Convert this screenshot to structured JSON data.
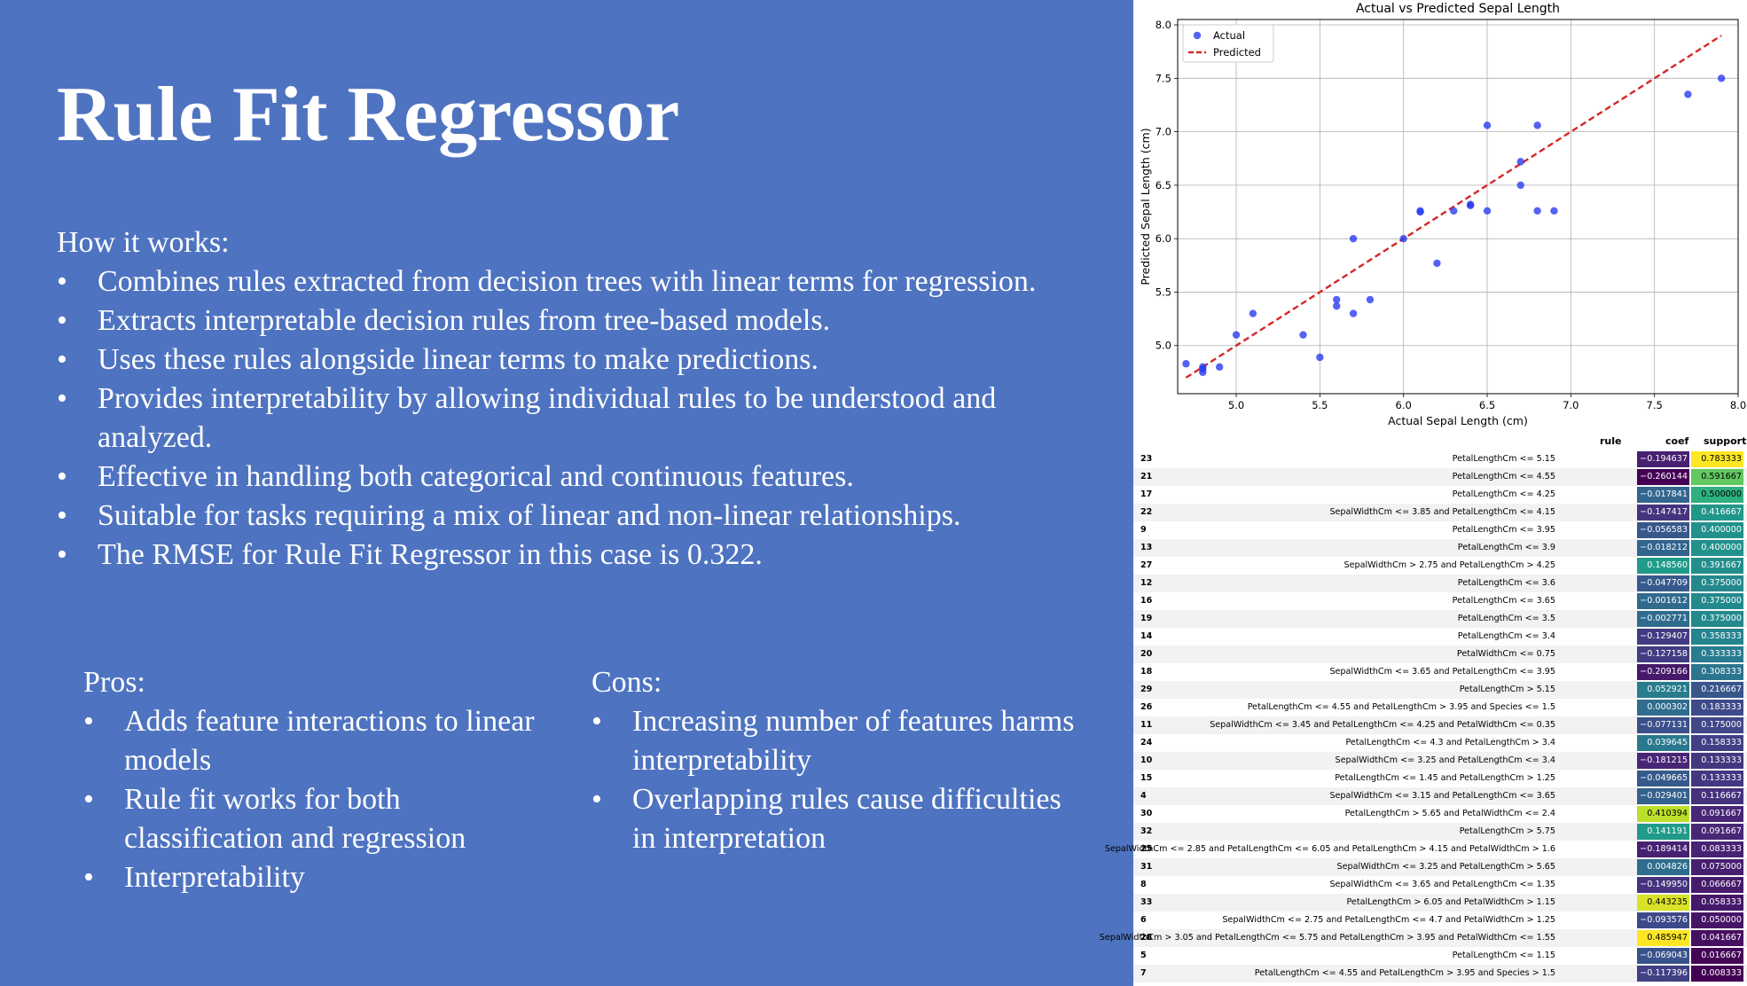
{
  "slide": {
    "title": "Rule Fit Regressor",
    "how_label": "How it works:",
    "how_items": [
      "Combines rules extracted from decision trees with linear terms for regression.",
      "Extracts interpretable decision rules from tree-based models.",
      "Uses these rules alongside linear terms to make predictions.",
      "Provides interpretability by allowing individual rules to be understood and analyzed.",
      "Effective in handling both categorical and continuous features.",
      "Suitable for tasks requiring a mix of linear and non-linear relationships.",
      "The RMSE for Rule Fit Regressor in this case is 0.322."
    ],
    "pros_label": "Pros:",
    "pros_items": [
      "Adds feature interactions to linear models",
      "Rule fit works for both classification and regression",
      "Interpretability"
    ],
    "cons_label": "Cons:",
    "cons_items": [
      "Increasing number of features harms interpretability",
      "Overlapping rules cause difficulties in interpretation"
    ],
    "bullet_char": "•"
  },
  "chart_data": {
    "type": "scatter",
    "title": "Actual vs Predicted Sepal Length",
    "xlabel": "Actual Sepal Length (cm)",
    "ylabel": "Predicted Sepal Length (cm)",
    "xlim": [
      4.65,
      8.0
    ],
    "ylim": [
      4.55,
      8.05
    ],
    "xticks": [
      5.0,
      5.5,
      6.0,
      6.5,
      7.0,
      7.5,
      8.0
    ],
    "yticks": [
      5.0,
      5.5,
      6.0,
      6.5,
      7.0,
      7.5,
      8.0
    ],
    "grid": true,
    "legend_position": "top-left",
    "series": [
      {
        "name": "Actual",
        "color": "#2a3bf0",
        "points": [
          [
            4.7,
            4.83
          ],
          [
            4.8,
            4.78
          ],
          [
            4.8,
            4.75
          ],
          [
            4.8,
            4.8
          ],
          [
            4.9,
            4.8
          ],
          [
            5.0,
            5.1
          ],
          [
            5.1,
            5.3
          ],
          [
            5.4,
            5.1
          ],
          [
            5.5,
            4.89
          ],
          [
            5.6,
            5.43
          ],
          [
            5.6,
            5.37
          ],
          [
            5.7,
            5.3
          ],
          [
            5.7,
            6.0
          ],
          [
            5.8,
            5.43
          ],
          [
            6.0,
            6.0
          ],
          [
            6.1,
            6.26
          ],
          [
            6.1,
            6.25
          ],
          [
            6.2,
            5.77
          ],
          [
            6.3,
            6.26
          ],
          [
            6.4,
            6.31
          ],
          [
            6.4,
            6.32
          ],
          [
            6.5,
            6.26
          ],
          [
            6.5,
            7.06
          ],
          [
            6.7,
            6.72
          ],
          [
            6.7,
            6.5
          ],
          [
            6.8,
            6.26
          ],
          [
            6.8,
            7.06
          ],
          [
            6.9,
            6.26
          ],
          [
            7.7,
            7.35
          ],
          [
            7.9,
            7.5
          ]
        ]
      },
      {
        "name": "Predicted",
        "color": "#d62728",
        "line": [
          [
            4.7,
            4.7
          ],
          [
            7.9,
            7.9
          ]
        ]
      }
    ]
  },
  "table": {
    "headers": {
      "rule": "rule",
      "coef": "coef",
      "support": "support"
    },
    "rows": [
      {
        "idx": "23",
        "rule": "PetalLengthCm <= 5.15",
        "coef": -0.194637,
        "coef_text": "−0.194637",
        "support": 0.783333,
        "support_text": "0.783333"
      },
      {
        "idx": "21",
        "rule": "PetalLengthCm <= 4.55",
        "coef": -0.260144,
        "coef_text": "−0.260144",
        "support": 0.591667,
        "support_text": "0.591667"
      },
      {
        "idx": "17",
        "rule": "PetalLengthCm <= 4.25",
        "coef": -0.017841,
        "coef_text": "−0.017841",
        "support": 0.5,
        "support_text": "0.500000"
      },
      {
        "idx": "22",
        "rule": "SepalWidthCm <= 3.85 and PetalLengthCm <= 4.15",
        "coef": -0.147417,
        "coef_text": "−0.147417",
        "support": 0.416667,
        "support_text": "0.416667"
      },
      {
        "idx": "9",
        "rule": "PetalLengthCm <= 3.95",
        "coef": -0.056583,
        "coef_text": "−0.056583",
        "support": 0.4,
        "support_text": "0.400000"
      },
      {
        "idx": "13",
        "rule": "PetalLengthCm <= 3.9",
        "coef": -0.018212,
        "coef_text": "−0.018212",
        "support": 0.4,
        "support_text": "0.400000"
      },
      {
        "idx": "27",
        "rule": "SepalWidthCm > 2.75 and PetalLengthCm > 4.25",
        "coef": 0.14856,
        "coef_text": "0.148560",
        "support": 0.391667,
        "support_text": "0.391667"
      },
      {
        "idx": "12",
        "rule": "PetalLengthCm <= 3.6",
        "coef": -0.047709,
        "coef_text": "−0.047709",
        "support": 0.375,
        "support_text": "0.375000"
      },
      {
        "idx": "16",
        "rule": "PetalLengthCm <= 3.65",
        "coef": -0.001612,
        "coef_text": "−0.001612",
        "support": 0.375,
        "support_text": "0.375000"
      },
      {
        "idx": "19",
        "rule": "PetalLengthCm <= 3.5",
        "coef": -0.002771,
        "coef_text": "−0.002771",
        "support": 0.375,
        "support_text": "0.375000"
      },
      {
        "idx": "14",
        "rule": "PetalLengthCm <= 3.4",
        "coef": -0.129407,
        "coef_text": "−0.129407",
        "support": 0.358333,
        "support_text": "0.358333"
      },
      {
        "idx": "20",
        "rule": "PetalWidthCm <= 0.75",
        "coef": -0.127158,
        "coef_text": "−0.127158",
        "support": 0.333333,
        "support_text": "0.333333"
      },
      {
        "idx": "18",
        "rule": "SepalWidthCm <= 3.65 and PetalLengthCm <= 3.95",
        "coef": -0.209166,
        "coef_text": "−0.209166",
        "support": 0.308333,
        "support_text": "0.308333"
      },
      {
        "idx": "29",
        "rule": "PetalLengthCm > 5.15",
        "coef": 0.052921,
        "coef_text": "0.052921",
        "support": 0.216667,
        "support_text": "0.216667"
      },
      {
        "idx": "26",
        "rule": "PetalLengthCm <= 4.55 and PetalLengthCm > 3.95 and Species <= 1.5",
        "coef": 0.000302,
        "coef_text": "0.000302",
        "support": 0.183333,
        "support_text": "0.183333"
      },
      {
        "idx": "11",
        "rule": "SepalWidthCm <= 3.45 and PetalLengthCm <= 4.25 and PetalWidthCm <= 0.35",
        "coef": -0.077131,
        "coef_text": "−0.077131",
        "support": 0.175,
        "support_text": "0.175000"
      },
      {
        "idx": "24",
        "rule": "PetalLengthCm <= 4.3 and PetalLengthCm > 3.4",
        "coef": 0.039645,
        "coef_text": "0.039645",
        "support": 0.158333,
        "support_text": "0.158333"
      },
      {
        "idx": "10",
        "rule": "SepalWidthCm <= 3.25 and PetalLengthCm <= 3.4",
        "coef": -0.181215,
        "coef_text": "−0.181215",
        "support": 0.133333,
        "support_text": "0.133333"
      },
      {
        "idx": "15",
        "rule": "PetalLengthCm <= 1.45 and PetalLengthCm > 1.25",
        "coef": -0.049665,
        "coef_text": "−0.049665",
        "support": 0.133333,
        "support_text": "0.133333"
      },
      {
        "idx": "4",
        "rule": "SepalWidthCm <= 3.15 and PetalLengthCm <= 3.65",
        "coef": -0.029401,
        "coef_text": "−0.029401",
        "support": 0.116667,
        "support_text": "0.116667"
      },
      {
        "idx": "30",
        "rule": "PetalLengthCm > 5.65 and PetalWidthCm <= 2.4",
        "coef": 0.410394,
        "coef_text": "0.410394",
        "support": 0.091667,
        "support_text": "0.091667"
      },
      {
        "idx": "32",
        "rule": "PetalLengthCm > 5.75",
        "coef": 0.141191,
        "coef_text": "0.141191",
        "support": 0.091667,
        "support_text": "0.091667"
      },
      {
        "idx": "25",
        "rule": "SepalWidthCm <= 2.85 and PetalLengthCm <= 6.05 and PetalLengthCm > 4.15 and PetalWidthCm > 1.6",
        "coef": -0.189414,
        "coef_text": "−0.189414",
        "support": 0.083333,
        "support_text": "0.083333"
      },
      {
        "idx": "31",
        "rule": "SepalWidthCm <= 3.25 and PetalLengthCm > 5.65",
        "coef": 0.004826,
        "coef_text": "0.004826",
        "support": 0.075,
        "support_text": "0.075000"
      },
      {
        "idx": "8",
        "rule": "SepalWidthCm <= 3.65 and PetalLengthCm <= 1.35",
        "coef": -0.14995,
        "coef_text": "−0.149950",
        "support": 0.066667,
        "support_text": "0.066667"
      },
      {
        "idx": "33",
        "rule": "PetalLengthCm > 6.05 and PetalWidthCm > 1.15",
        "coef": 0.443235,
        "coef_text": "0.443235",
        "support": 0.058333,
        "support_text": "0.058333"
      },
      {
        "idx": "6",
        "rule": "SepalWidthCm <= 2.75 and PetalLengthCm <= 4.7 and PetalWidthCm > 1.25",
        "coef": -0.093576,
        "coef_text": "−0.093576",
        "support": 0.05,
        "support_text": "0.050000"
      },
      {
        "idx": "28",
        "rule": "SepalWidthCm > 3.05 and PetalLengthCm <= 5.75 and PetalLengthCm > 3.95 and PetalWidthCm <= 1.55",
        "coef": 0.485947,
        "coef_text": "0.485947",
        "support": 0.041667,
        "support_text": "0.041667"
      },
      {
        "idx": "5",
        "rule": "PetalLengthCm <= 1.15",
        "coef": -0.069043,
        "coef_text": "−0.069043",
        "support": 0.016667,
        "support_text": "0.016667"
      },
      {
        "idx": "7",
        "rule": "PetalLengthCm <= 4.55 and PetalLengthCm > 3.95 and Species > 1.5",
        "coef": -0.117396,
        "coef_text": "−0.117396",
        "support": 0.008333,
        "support_text": "0.008333"
      }
    ]
  },
  "colors": {
    "slide_bg": "#4e73c0",
    "colormap": "viridis"
  }
}
